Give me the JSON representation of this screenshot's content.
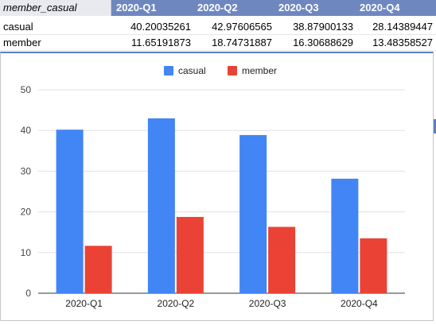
{
  "table": {
    "header": [
      "member_casual",
      "2020-Q1",
      "2020-Q2",
      "2020-Q3",
      "2020-Q4"
    ],
    "rows": [
      {
        "label": "casual",
        "values": [
          "40.20035261",
          "42.97606565",
          "38.87900133",
          "28.14389447"
        ]
      },
      {
        "label": "member",
        "values": [
          "11.65191873",
          "18.74731887",
          "16.30688629",
          "13.48358527"
        ]
      }
    ]
  },
  "colors": {
    "casual": "#4285f4",
    "member": "#ea4335",
    "header_bg": "#6e87bf"
  },
  "chart_data": {
    "type": "bar",
    "categories": [
      "2020-Q1",
      "2020-Q2",
      "2020-Q3",
      "2020-Q4"
    ],
    "series": [
      {
        "name": "casual",
        "values": [
          40.20035261,
          42.97606565,
          38.87900133,
          28.14389447
        ],
        "color": "#4285f4"
      },
      {
        "name": "member",
        "values": [
          11.65191873,
          18.74731887,
          16.30688629,
          13.48358527
        ],
        "color": "#ea4335"
      }
    ],
    "ylim": [
      0,
      50
    ],
    "yticks": [
      0,
      10,
      20,
      30,
      40,
      50
    ],
    "grid": true,
    "legend": "top-center",
    "title": "",
    "xlabel": "",
    "ylabel": ""
  }
}
